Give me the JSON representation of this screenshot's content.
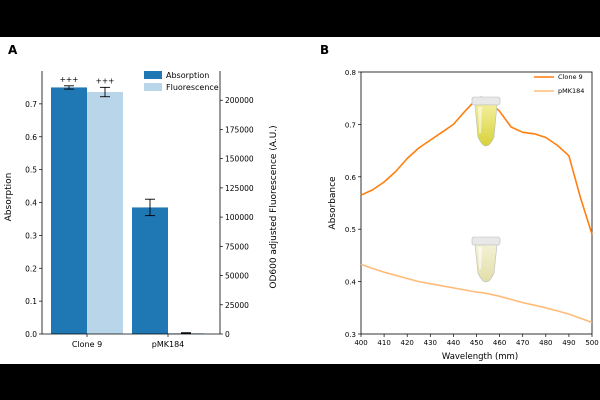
{
  "panels": {
    "a_label": "A",
    "b_label": "B"
  },
  "chart_data": [
    {
      "type": "bar",
      "panel": "A",
      "categories": [
        "Clone 9",
        "pMK184"
      ],
      "series": [
        {
          "name": "Absorption",
          "axis": "left",
          "color": "#1f77b4",
          "values": [
            0.75,
            0.385
          ],
          "errors": [
            0.005,
            0.025
          ]
        },
        {
          "name": "Fluorescence",
          "axis": "right",
          "color": "#b9d5ea",
          "values": [
            207000,
            800
          ],
          "errors": [
            4000,
            300
          ]
        }
      ],
      "ylabel": "Absorption",
      "ylim": [
        0,
        0.8
      ],
      "yticks": [
        "0.0",
        "0.1",
        "0.2",
        "0.3",
        "0.4",
        "0.5",
        "0.6",
        "0.7"
      ],
      "y2label": "OD600 adjusted Fluorescence (A.U.)",
      "y2lim": [
        0,
        225000
      ],
      "y2ticks": [
        "0",
        "25000",
        "50000",
        "75000",
        "100000",
        "125000",
        "150000",
        "175000",
        "200000"
      ],
      "annotations": [
        "+++",
        "+++"
      ],
      "legend": "top-right"
    },
    {
      "type": "line",
      "panel": "B",
      "x": [
        400,
        405,
        410,
        415,
        420,
        425,
        430,
        435,
        440,
        445,
        450,
        452,
        455,
        460,
        465,
        470,
        475,
        480,
        485,
        490,
        495,
        500
      ],
      "series": [
        {
          "name": "Clone 9",
          "color": "#ff7f0e",
          "values": [
            0.565,
            0.575,
            0.59,
            0.61,
            0.635,
            0.655,
            0.67,
            0.685,
            0.7,
            0.725,
            0.748,
            0.752,
            0.745,
            0.725,
            0.695,
            0.685,
            0.682,
            0.675,
            0.66,
            0.64,
            0.56,
            0.49
          ]
        },
        {
          "name": "pMK184",
          "color": "#ffbb78",
          "values": [
            0.433,
            0.425,
            0.418,
            0.412,
            0.406,
            0.4,
            0.396,
            0.392,
            0.388,
            0.384,
            0.38,
            0.379,
            0.377,
            0.372,
            0.366,
            0.36,
            0.355,
            0.35,
            0.344,
            0.338,
            0.33,
            0.322
          ]
        }
      ],
      "xlabel": "Wavelength (mm)",
      "ylabel": "Absorbance",
      "xlim": [
        400,
        500
      ],
      "ylim": [
        0.3,
        0.8
      ],
      "xticks": [
        "400",
        "410",
        "420",
        "430",
        "440",
        "450",
        "460",
        "470",
        "480",
        "490",
        "500"
      ],
      "yticks": [
        "0.3",
        "0.4",
        "0.5",
        "0.6",
        "0.7",
        "0.8"
      ],
      "legend": "top-right"
    }
  ]
}
